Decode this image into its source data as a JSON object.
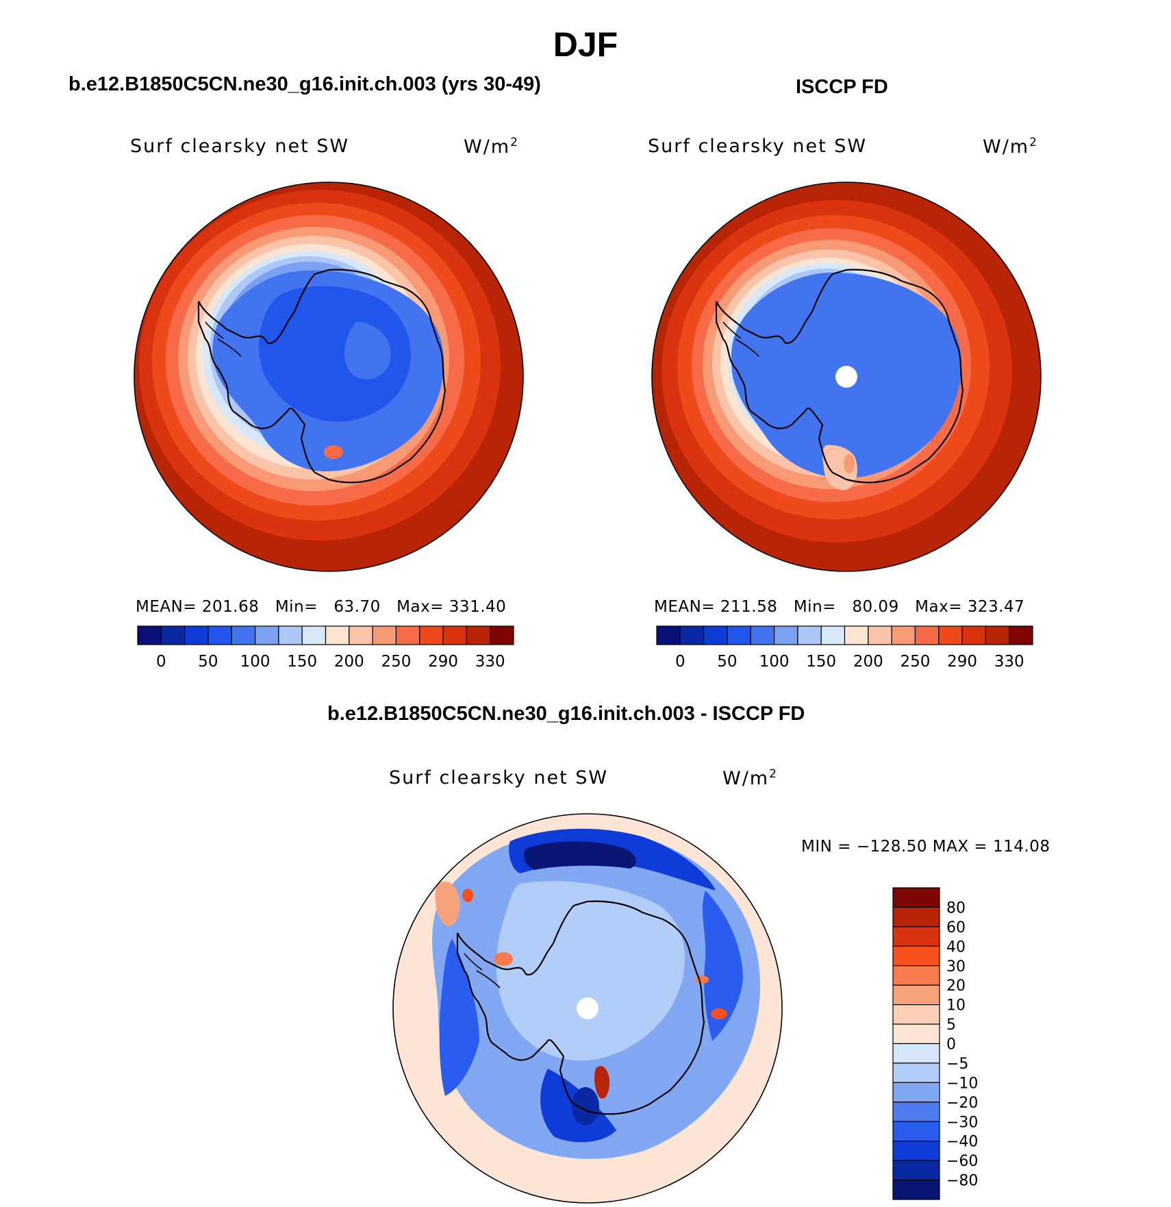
{
  "figure_title": "DJF",
  "panels": [
    {
      "title": "b.e12.B1850C5CN.ne30_g16.init.ch.003 (yrs 30-49)",
      "variable": "Surf clearsky net SW",
      "units_base": "W/m",
      "units_exp": "2",
      "stats": {
        "mean_label": "MEAN=",
        "mean": "201.68",
        "min_label": "Min=",
        "min": "63.70",
        "max_label": "Max=",
        "max": "331.40"
      }
    },
    {
      "title": "ISCCP FD",
      "variable": "Surf clearsky net SW",
      "units_base": "W/m",
      "units_exp": "2",
      "stats": {
        "mean_label": "MEAN=",
        "mean": "211.58",
        "min_label": "Min=",
        "min": "80.09",
        "max_label": "Max=",
        "max": "323.47"
      }
    },
    {
      "title": "b.e12.B1850C5CN.ne30_g16.init.ch.003 - ISCCP FD",
      "variable": "Surf clearsky net SW",
      "units_base": "W/m",
      "units_exp": "2",
      "minmax": "MIN = −128.50  MAX = 114.08"
    }
  ],
  "chart_data": [
    {
      "type": "heatmap",
      "title": "b.e12.B1850C5CN.ne30_g16.init.ch.003 (yrs 30-49)",
      "projection": "south polar stereographic",
      "variable": "Surf clearsky net SW",
      "units": "W/m2",
      "colorbar": {
        "orientation": "horizontal",
        "levels": [
          "0",
          "25",
          "50",
          "75",
          "100",
          "125",
          "150",
          "175",
          "200",
          "225",
          "250",
          "270",
          "290",
          "310",
          "330"
        ],
        "tick_labels": [
          "0",
          "50",
          "100",
          "150",
          "200",
          "250",
          "290",
          "330"
        ],
        "colors": [
          "#0a0f78",
          "#0b29a5",
          "#0f3ed6",
          "#2156ec",
          "#4374ef",
          "#7aa1f2",
          "#adc8f7",
          "#d7e8fb",
          "#fde4d3",
          "#fbc4a8",
          "#f89a75",
          "#f76b48",
          "#ee4a1c",
          "#d9330f",
          "#b82406",
          "#7e0600"
        ]
      },
      "stats": {
        "mean": 201.68,
        "min": 63.7,
        "max": 331.4
      }
    },
    {
      "type": "heatmap",
      "title": "ISCCP FD",
      "projection": "south polar stereographic",
      "variable": "Surf clearsky net SW",
      "units": "W/m2",
      "colorbar": {
        "orientation": "horizontal",
        "levels": [
          "0",
          "25",
          "50",
          "75",
          "100",
          "125",
          "150",
          "175",
          "200",
          "225",
          "250",
          "270",
          "290",
          "310",
          "330"
        ],
        "tick_labels": [
          "0",
          "50",
          "100",
          "150",
          "200",
          "250",
          "290",
          "330"
        ],
        "colors": [
          "#0a0f78",
          "#0b29a5",
          "#0f3ed6",
          "#2156ec",
          "#4374ef",
          "#7aa1f2",
          "#adc8f7",
          "#d7e8fb",
          "#fde4d3",
          "#fbc4a8",
          "#f89a75",
          "#f76b48",
          "#ee4a1c",
          "#d9330f",
          "#b82406",
          "#7e0600"
        ]
      },
      "stats": {
        "mean": 211.58,
        "min": 80.09,
        "max": 323.47
      }
    },
    {
      "type": "heatmap",
      "title": "b.e12.B1850C5CN.ne30_g16.init.ch.003 - ISCCP FD",
      "projection": "south polar stereographic",
      "variable": "Surf clearsky net SW",
      "units": "W/m2",
      "colorbar": {
        "orientation": "vertical",
        "tick_labels": [
          "80",
          "60",
          "40",
          "30",
          "20",
          "10",
          "5",
          "0",
          "−5",
          "−10",
          "−20",
          "−30",
          "−40",
          "−60",
          "−80"
        ],
        "colors": [
          "#7e0600",
          "#b82406",
          "#d9330f",
          "#f7501f",
          "#f87b4d",
          "#f9a37c",
          "#fcd0b6",
          "#fde6d6",
          "#d6e7fb",
          "#b1cdf8",
          "#82a8f3",
          "#4f7df0",
          "#2a5ded",
          "#0f3bd6",
          "#0b28a3",
          "#081572"
        ]
      },
      "min": -128.5,
      "max": 114.08
    }
  ]
}
